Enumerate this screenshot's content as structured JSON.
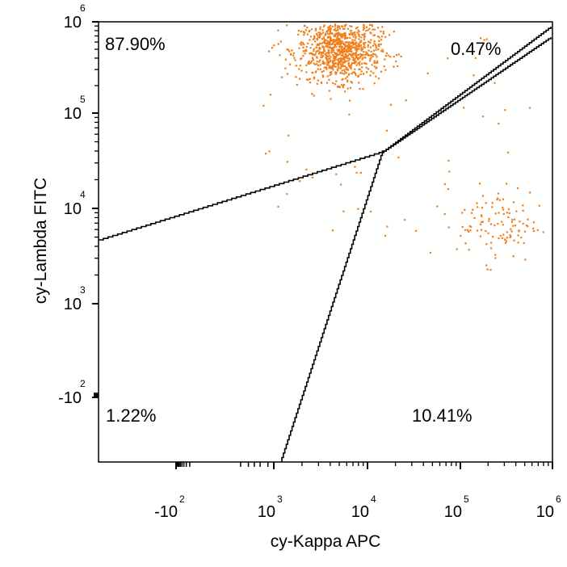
{
  "chart_data": {
    "type": "scatter",
    "title": "",
    "xlabel": "cy-Kappa APC",
    "ylabel": "cy-Lambda FITC",
    "x_scale": "biexponential",
    "y_scale": "biexponential",
    "xlim": [
      -200,
      1000000
    ],
    "ylim": [
      -300,
      1000000
    ],
    "grid": false,
    "legend": "none",
    "x_ticks": [
      {
        "value": -100,
        "base": "-10",
        "exp": "2"
      },
      {
        "value": 1000,
        "base": "10",
        "exp": "3"
      },
      {
        "value": 10000,
        "base": "10",
        "exp": "4"
      },
      {
        "value": 100000,
        "base": "10",
        "exp": "5"
      },
      {
        "value": 1000000,
        "base": "10",
        "exp": "6"
      }
    ],
    "y_ticks": [
      {
        "value": -100,
        "base": "-10",
        "exp": "2"
      },
      {
        "value": 1000,
        "base": "10",
        "exp": "3"
      },
      {
        "value": 10000,
        "base": "10",
        "exp": "4"
      },
      {
        "value": 100000,
        "base": "10",
        "exp": "5"
      },
      {
        "value": 1000000,
        "base": "10",
        "exp": "6"
      }
    ],
    "quadrant_labels": [
      {
        "quadrant": "upper-left",
        "text": "87.90%"
      },
      {
        "quadrant": "upper-right",
        "text": "0.47%"
      },
      {
        "quadrant": "lower-left",
        "text": "1.22%"
      },
      {
        "quadrant": "lower-right",
        "text": "10.41%"
      }
    ],
    "gate_center": [
      15000,
      40000
    ],
    "populations": [
      {
        "x_center": 5000,
        "y_center": 500000,
        "x_spread_decades": 0.22,
        "y_spread_decades": 0.17,
        "approx_points": 900
      },
      {
        "x_center": 250000,
        "y_center": 7000,
        "x_spread_decades": 0.22,
        "y_spread_decades": 0.2,
        "approx_points": 110
      }
    ],
    "colors": {
      "events": "#f07f1a",
      "gate": "#000000"
    }
  }
}
